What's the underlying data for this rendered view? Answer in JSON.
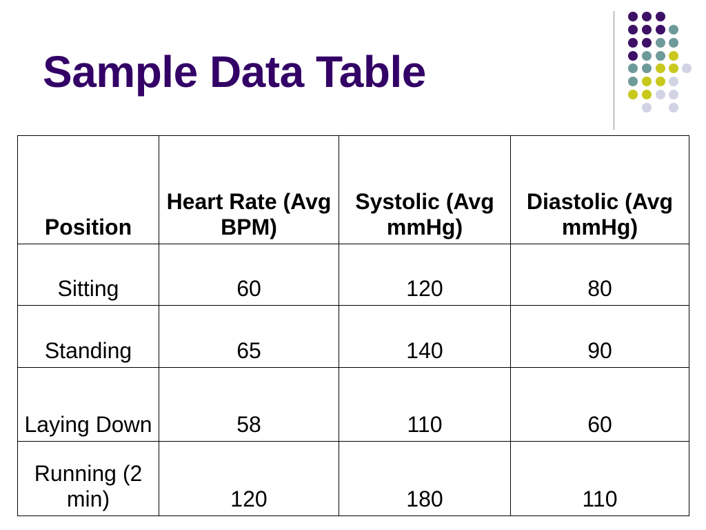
{
  "slide": {
    "title": "Sample Data Table"
  },
  "table": {
    "headers": [
      "Position",
      "Heart Rate (Avg BPM)",
      "Systolic (Avg mmHg)",
      "Diastolic (Avg mmHg)"
    ],
    "rows": [
      [
        "Sitting",
        "60",
        "120",
        "80"
      ],
      [
        "Standing",
        "65",
        "140",
        "90"
      ],
      [
        "Laying Down",
        "58",
        "110",
        "60"
      ],
      [
        "Running (2 min)",
        "120",
        "180",
        "110"
      ]
    ]
  },
  "colors": {
    "title": "#330066",
    "dot_purple": "#3d1166",
    "dot_teal": "#6f9a9a",
    "dot_yellow": "#c8c81e",
    "dot_lavender": "#d3d3e6"
  }
}
